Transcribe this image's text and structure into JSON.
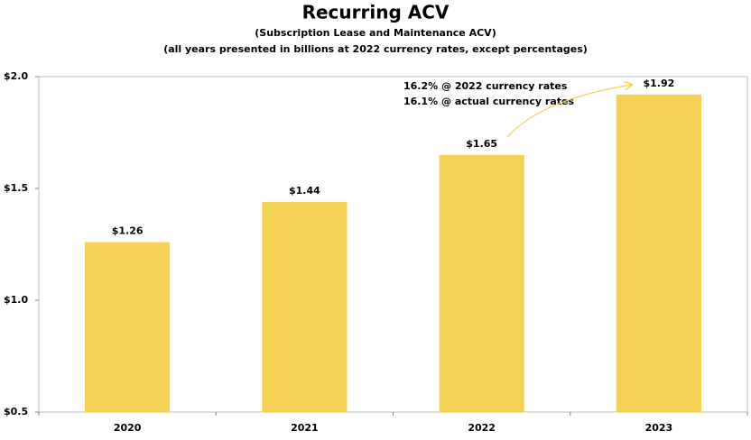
{
  "chart_data": {
    "type": "bar",
    "title": "Recurring ACV",
    "subtitles": [
      "(Subscription Lease and Maintenance ACV)",
      "(all years presented in billions at 2022 currency rates, except percentages)"
    ],
    "categories": [
      "2020",
      "2021",
      "2022",
      "2023"
    ],
    "values": [
      1.26,
      1.44,
      1.65,
      1.92
    ],
    "value_labels": [
      "$1.26",
      "$1.44",
      "$1.65",
      "$1.92"
    ],
    "color": "#f5d155",
    "ylim": [
      0.5,
      2.0
    ],
    "yticks": [
      {
        "value": 0.5,
        "label": "$0.5"
      },
      {
        "value": 1.0,
        "label": "$1.0"
      },
      {
        "value": 1.5,
        "label": "$1.5"
      },
      {
        "value": 2.0,
        "label": "$2.0"
      }
    ],
    "annotations": [
      "16.2% @ 2022 currency rates",
      "16.1% @ actual currency rates"
    ]
  }
}
